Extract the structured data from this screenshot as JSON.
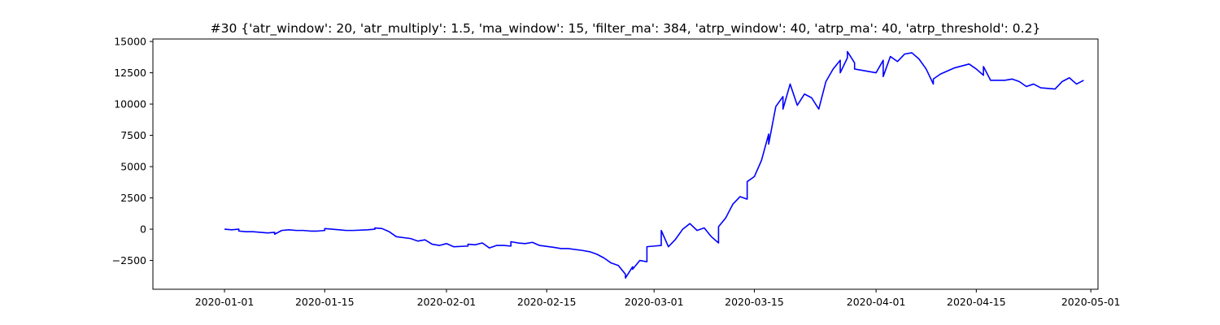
{
  "chart_data": {
    "type": "line",
    "title": "#30 {'atr_window': 20, 'atr_multiply': 1.5, 'ma_window': 15, 'filter_ma': 384, 'atrp_window': 40, 'atrp_ma': 40, 'atrp_threshold': 0.2}",
    "xlabel": "",
    "ylabel": "",
    "grid": false,
    "legend": "none",
    "xlim": [
      "2019-12-22",
      "2020-05-02"
    ],
    "ylim": [
      -4800,
      15200
    ],
    "x_ticks": [
      "2020-01-01",
      "2020-01-15",
      "2020-02-01",
      "2020-02-15",
      "2020-03-01",
      "2020-03-15",
      "2020-04-01",
      "2020-04-15",
      "2020-05-01"
    ],
    "y_ticks": [
      -2500,
      0,
      2500,
      5000,
      7500,
      10000,
      12500,
      15000
    ],
    "y_tick_labels": [
      "−2500",
      "0",
      "2500",
      "5000",
      "7500",
      "10000",
      "12500",
      "15000"
    ],
    "series": [
      {
        "color": "#0000ff",
        "points": [
          [
            "2020-01-01",
            0
          ],
          [
            "2020-01-02",
            -50
          ],
          [
            "2020-01-03",
            0
          ],
          [
            "2020-01-03",
            -150
          ],
          [
            "2020-01-04",
            -200
          ],
          [
            "2020-01-05",
            -200
          ],
          [
            "2020-01-06",
            -250
          ],
          [
            "2020-01-07",
            -300
          ],
          [
            "2020-01-08",
            -250
          ],
          [
            "2020-01-08",
            -400
          ],
          [
            "2020-01-09",
            -100
          ],
          [
            "2020-01-10",
            -50
          ],
          [
            "2020-01-11",
            -100
          ],
          [
            "2020-01-12",
            -100
          ],
          [
            "2020-01-13",
            -150
          ],
          [
            "2020-01-14",
            -150
          ],
          [
            "2020-01-15",
            -100
          ],
          [
            "2020-01-15",
            50
          ],
          [
            "2020-01-16",
            0
          ],
          [
            "2020-01-17",
            -50
          ],
          [
            "2020-01-18",
            -100
          ],
          [
            "2020-01-19",
            -100
          ],
          [
            "2020-01-21",
            -50
          ],
          [
            "2020-01-22",
            0
          ],
          [
            "2020-01-22",
            100
          ],
          [
            "2020-01-23",
            50
          ],
          [
            "2020-01-24",
            -200
          ],
          [
            "2020-01-25",
            -600
          ],
          [
            "2020-01-27",
            -750
          ],
          [
            "2020-01-28",
            -950
          ],
          [
            "2020-01-29",
            -850
          ],
          [
            "2020-01-30",
            -1200
          ],
          [
            "2020-01-31",
            -1300
          ],
          [
            "2020-02-01",
            -1150
          ],
          [
            "2020-02-02",
            -1400
          ],
          [
            "2020-02-04",
            -1350
          ],
          [
            "2020-02-04",
            -1200
          ],
          [
            "2020-02-05",
            -1250
          ],
          [
            "2020-02-06",
            -1100
          ],
          [
            "2020-02-07",
            -1500
          ],
          [
            "2020-02-08",
            -1300
          ],
          [
            "2020-02-09",
            -1300
          ],
          [
            "2020-02-10",
            -1350
          ],
          [
            "2020-02-10",
            -1000
          ],
          [
            "2020-02-11",
            -1100
          ],
          [
            "2020-02-12",
            -1150
          ],
          [
            "2020-02-13",
            -1050
          ],
          [
            "2020-02-14",
            -1300
          ],
          [
            "2020-02-16",
            -1450
          ],
          [
            "2020-02-17",
            -1550
          ],
          [
            "2020-02-18",
            -1550
          ],
          [
            "2020-02-20",
            -1700
          ],
          [
            "2020-02-21",
            -1800
          ],
          [
            "2020-02-22",
            -2000
          ],
          [
            "2020-02-23",
            -2300
          ],
          [
            "2020-02-24",
            -2700
          ],
          [
            "2020-02-25",
            -2900
          ],
          [
            "2020-02-26",
            -3600
          ],
          [
            "2020-02-26",
            -3900
          ],
          [
            "2020-02-27",
            -3000
          ],
          [
            "2020-02-27",
            -3200
          ],
          [
            "2020-02-28",
            -2500
          ],
          [
            "2020-02-29",
            -2600
          ],
          [
            "2020-02-29",
            -2300
          ],
          [
            "2020-02-29",
            -1400
          ],
          [
            "2020-03-01",
            -1350
          ],
          [
            "2020-03-02",
            -1300
          ],
          [
            "2020-03-02",
            -100
          ],
          [
            "2020-03-03",
            -1400
          ],
          [
            "2020-03-04",
            -800
          ],
          [
            "2020-03-05",
            0
          ],
          [
            "2020-03-06",
            450
          ],
          [
            "2020-03-07",
            -100
          ],
          [
            "2020-03-08",
            100
          ],
          [
            "2020-03-09",
            -600
          ],
          [
            "2020-03-10",
            -1100
          ],
          [
            "2020-03-10",
            200
          ],
          [
            "2020-03-11",
            900
          ],
          [
            "2020-03-12",
            2000
          ],
          [
            "2020-03-13",
            2600
          ],
          [
            "2020-03-14",
            2400
          ],
          [
            "2020-03-14",
            3800
          ],
          [
            "2020-03-15",
            4200
          ],
          [
            "2020-03-16",
            5500
          ],
          [
            "2020-03-17",
            7600
          ],
          [
            "2020-03-17",
            6800
          ],
          [
            "2020-03-18",
            9800
          ],
          [
            "2020-03-19",
            10600
          ],
          [
            "2020-03-19",
            9600
          ],
          [
            "2020-03-20",
            11600
          ],
          [
            "2020-03-21",
            9900
          ],
          [
            "2020-03-22",
            10800
          ],
          [
            "2020-03-23",
            10500
          ],
          [
            "2020-03-24",
            9600
          ],
          [
            "2020-03-25",
            11800
          ],
          [
            "2020-03-26",
            12800
          ],
          [
            "2020-03-27",
            13500
          ],
          [
            "2020-03-27",
            12500
          ],
          [
            "2020-03-28",
            13700
          ],
          [
            "2020-03-28",
            14200
          ],
          [
            "2020-03-29",
            13300
          ],
          [
            "2020-03-29",
            12800
          ],
          [
            "2020-04-01",
            12500
          ],
          [
            "2020-04-02",
            13500
          ],
          [
            "2020-04-02",
            12200
          ],
          [
            "2020-04-03",
            13800
          ],
          [
            "2020-04-04",
            13400
          ],
          [
            "2020-04-05",
            14000
          ],
          [
            "2020-04-06",
            14100
          ],
          [
            "2020-04-07",
            13600
          ],
          [
            "2020-04-08",
            12800
          ],
          [
            "2020-04-09",
            11600
          ],
          [
            "2020-04-09",
            12000
          ],
          [
            "2020-04-10",
            12400
          ],
          [
            "2020-04-12",
            12900
          ],
          [
            "2020-04-14",
            13200
          ],
          [
            "2020-04-15",
            12800
          ],
          [
            "2020-04-16",
            12300
          ],
          [
            "2020-04-16",
            13000
          ],
          [
            "2020-04-17",
            11900
          ],
          [
            "2020-04-19",
            11900
          ],
          [
            "2020-04-20",
            12000
          ],
          [
            "2020-04-21",
            11800
          ],
          [
            "2020-04-22",
            11400
          ],
          [
            "2020-04-23",
            11600
          ],
          [
            "2020-04-24",
            11300
          ],
          [
            "2020-04-26",
            11200
          ],
          [
            "2020-04-27",
            11800
          ],
          [
            "2020-04-28",
            12100
          ],
          [
            "2020-04-29",
            11600
          ],
          [
            "2020-04-30",
            11900
          ]
        ]
      }
    ]
  }
}
